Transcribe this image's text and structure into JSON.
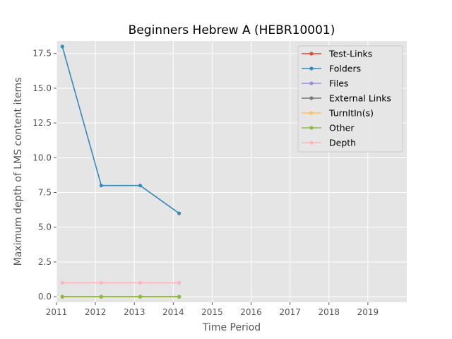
{
  "chart_data": {
    "type": "line",
    "title": "Beginners Hebrew A (HEBR10001)",
    "xlabel": "Time Period",
    "ylabel": "Maximum depth of LMS content items",
    "xlim": [
      2011,
      2020
    ],
    "ylim": [
      -0.4,
      18.4
    ],
    "x_ticks": [
      2011,
      2012,
      2013,
      2014,
      2015,
      2016,
      2017,
      2018,
      2019
    ],
    "x_tick_labels": [
      "2011",
      "2012",
      "2013",
      "2014",
      "2015",
      "2016",
      "2017",
      "2018",
      "2019"
    ],
    "y_ticks": [
      0,
      2.5,
      5,
      7.5,
      10,
      12.5,
      15,
      17.5
    ],
    "y_tick_labels": [
      "0.0",
      "2.5",
      "5.0",
      "7.5",
      "10.0",
      "12.5",
      "15.0",
      "17.5"
    ],
    "grid": true,
    "legend_position": "top-right",
    "x": [
      2011.15,
      2012.15,
      2013.15,
      2014.15
    ],
    "series": [
      {
        "name": "Test-Links",
        "color": "#E24A33",
        "values": [
          0,
          0,
          0,
          0
        ]
      },
      {
        "name": "Folders",
        "color": "#348ABD",
        "values": [
          18,
          8,
          8,
          6
        ]
      },
      {
        "name": "Files",
        "color": "#988ED5",
        "values": [
          0,
          0,
          0,
          0
        ]
      },
      {
        "name": "External Links",
        "color": "#777777",
        "values": [
          0,
          0,
          0,
          0
        ]
      },
      {
        "name": "TurnItIn(s)",
        "color": "#FBC15E",
        "values": [
          0,
          0,
          0,
          0
        ]
      },
      {
        "name": "Other",
        "color": "#8EBA42",
        "values": [
          0,
          0,
          0,
          0
        ]
      },
      {
        "name": "Depth",
        "color": "#FFB5B8",
        "values": [
          1,
          1,
          1,
          1
        ]
      }
    ],
    "draw_order": [
      0,
      2,
      3,
      4,
      6,
      5,
      1
    ]
  }
}
